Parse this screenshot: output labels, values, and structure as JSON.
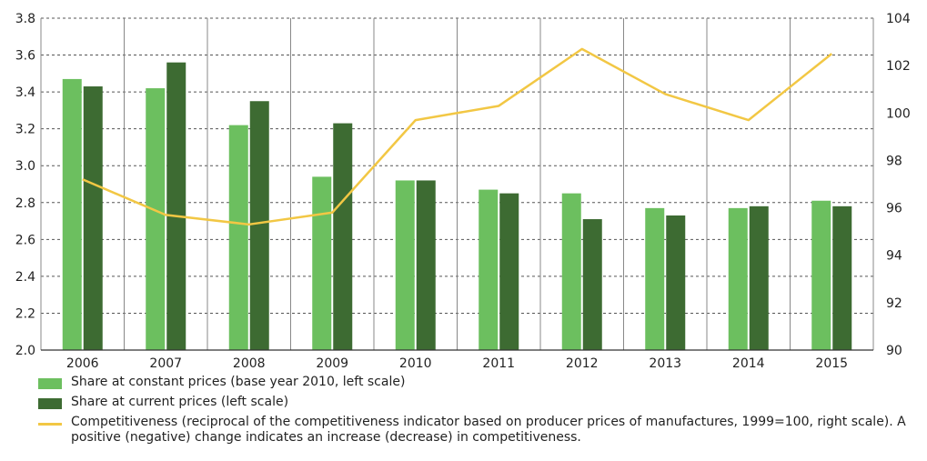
{
  "chart_data": {
    "type": "bar",
    "categories": [
      "2006",
      "2007",
      "2008",
      "2009",
      "2010",
      "2011",
      "2012",
      "2013",
      "2014",
      "2015"
    ],
    "series": [
      {
        "name": "Share at constant prices (base year 2010, left scale)",
        "type": "bar",
        "axis": "left",
        "color": "#6cbf5f",
        "values": [
          3.47,
          3.42,
          3.22,
          2.94,
          2.92,
          2.87,
          2.85,
          2.77,
          2.77,
          2.81
        ]
      },
      {
        "name": "Share at current prices (left scale)",
        "type": "bar",
        "axis": "left",
        "color": "#3d6b32",
        "values": [
          3.43,
          3.56,
          3.35,
          3.23,
          2.92,
          2.85,
          2.71,
          2.73,
          2.78,
          2.78
        ]
      },
      {
        "name": "Competitiveness (reciprocal of the competitiveness indicator based on producer prices of manufactures, 1999=100, right scale). A positive (negative) change indicates an increase (decrease) in competitiveness.",
        "type": "line",
        "axis": "right",
        "color": "#f2c744",
        "values": [
          97.2,
          95.7,
          95.3,
          95.8,
          99.7,
          100.3,
          102.7,
          100.8,
          99.7,
          102.5
        ]
      }
    ],
    "y_left": {
      "min": 2.0,
      "max": 3.8,
      "step": 0.2,
      "ticks": [
        "2.0",
        "2.2",
        "2.4",
        "2.6",
        "2.8",
        "3.0",
        "3.2",
        "3.4",
        "3.6",
        "3.8"
      ]
    },
    "y_right": {
      "min": 90,
      "max": 104,
      "step": 2,
      "ticks": [
        "90",
        "92",
        "94",
        "96",
        "98",
        "100",
        "102",
        "104"
      ]
    },
    "grid": {
      "horizontal": "dashed",
      "vertical": "solid"
    },
    "legend_position": "bottom"
  }
}
